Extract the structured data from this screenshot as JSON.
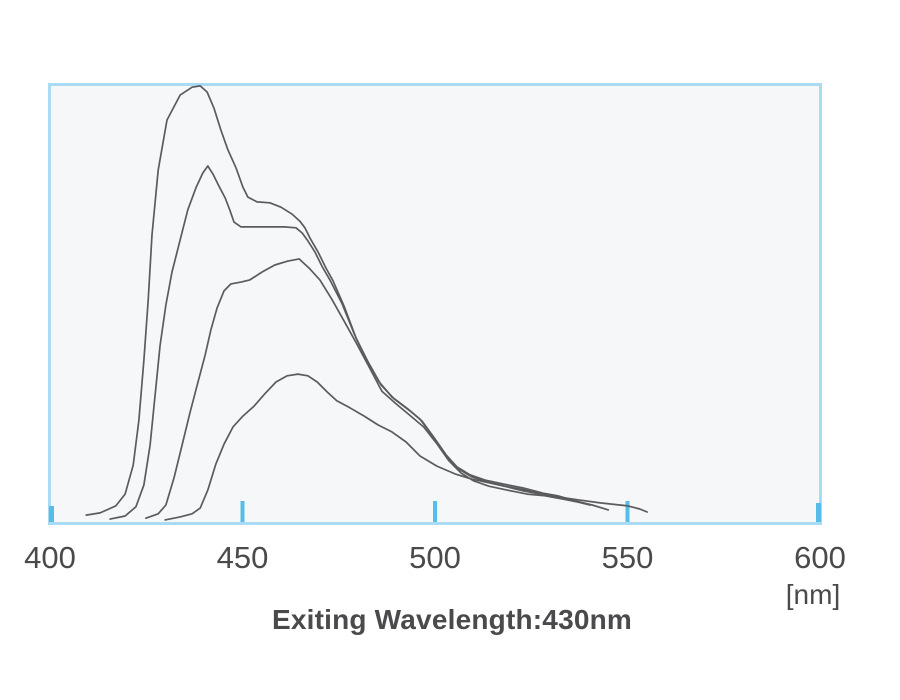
{
  "chart": {
    "caption": "Exiting Wavelength:430nm",
    "unit_label": "[nm]",
    "colors": {
      "plot_background": "#f5f7f9",
      "border": "#a9dcf4",
      "tick": "#55bde9",
      "curve": "#5b5b5e",
      "text": "#4a4a4c"
    }
  },
  "chart_data": {
    "type": "line",
    "title": "",
    "xlabel": "[nm]",
    "ylabel": "",
    "xlim": [
      400,
      600
    ],
    "ylim": [
      0,
      100
    ],
    "x_ticks": [
      400,
      450,
      500,
      550,
      600
    ],
    "y_ticks": [],
    "grid": false,
    "legend": "none",
    "annotation": "Exiting Wavelength:430nm",
    "y_units": "relative intensity (percent of plot height, unlabeled axis)",
    "series": [
      {
        "name": "curve-1-highest",
        "points": [
          [
            409.4,
            1.8
          ],
          [
            413.0,
            2.3
          ],
          [
            417.1,
            3.9
          ],
          [
            419.5,
            6.6
          ],
          [
            421.6,
            13.2
          ],
          [
            423.1,
            23.5
          ],
          [
            424.4,
            37.2
          ],
          [
            425.5,
            50.9
          ],
          [
            426.5,
            65.8
          ],
          [
            428.1,
            80.6
          ],
          [
            430.4,
            92.0
          ],
          [
            433.8,
            97.7
          ],
          [
            436.9,
            99.5
          ],
          [
            439.0,
            99.8
          ],
          [
            440.8,
            98.4
          ],
          [
            442.6,
            94.7
          ],
          [
            444.4,
            89.7
          ],
          [
            446.2,
            85.2
          ],
          [
            448.3,
            81.1
          ],
          [
            450.1,
            76.7
          ],
          [
            451.4,
            74.4
          ],
          [
            453.8,
            73.3
          ],
          [
            457.1,
            73.1
          ],
          [
            460.0,
            72.1
          ],
          [
            462.9,
            70.5
          ],
          [
            464.9,
            68.9
          ],
          [
            466.2,
            67.4
          ],
          [
            467.5,
            65.1
          ],
          [
            469.6,
            61.9
          ],
          [
            471.7,
            58.2
          ],
          [
            473.5,
            55.3
          ],
          [
            476.4,
            49.5
          ],
          [
            479.5,
            42.2
          ],
          [
            482.6,
            36.8
          ],
          [
            486.0,
            31.5
          ],
          [
            489.4,
            28.3
          ],
          [
            493.5,
            25.6
          ],
          [
            496.6,
            23.3
          ],
          [
            499.7,
            19.6
          ],
          [
            503.1,
            15.3
          ],
          [
            506.2,
            12.3
          ],
          [
            509.6,
            10.5
          ],
          [
            513.5,
            9.4
          ],
          [
            518.2,
            8.4
          ],
          [
            523.4,
            7.5
          ],
          [
            528.6,
            6.4
          ],
          [
            532.5,
            5.9
          ],
          [
            537.1,
            5.3
          ],
          [
            542.9,
            4.6
          ],
          [
            550.1,
            3.9
          ],
          [
            553.2,
            3.2
          ],
          [
            555.1,
            2.5
          ]
        ]
      },
      {
        "name": "curve-2",
        "points": [
          [
            415.6,
            0.9
          ],
          [
            419.5,
            1.6
          ],
          [
            422.3,
            3.7
          ],
          [
            424.4,
            8.7
          ],
          [
            426.0,
            17.8
          ],
          [
            427.3,
            29.2
          ],
          [
            428.6,
            40.6
          ],
          [
            430.1,
            49.8
          ],
          [
            431.7,
            57.3
          ],
          [
            433.8,
            64.6
          ],
          [
            435.8,
            71.5
          ],
          [
            437.9,
            76.5
          ],
          [
            439.7,
            79.9
          ],
          [
            441.0,
            81.5
          ],
          [
            442.3,
            79.7
          ],
          [
            443.9,
            76.9
          ],
          [
            445.5,
            74.2
          ],
          [
            446.8,
            71.2
          ],
          [
            447.8,
            68.7
          ],
          [
            449.6,
            67.6
          ],
          [
            453.2,
            67.6
          ],
          [
            457.1,
            67.6
          ],
          [
            460.8,
            67.6
          ],
          [
            463.9,
            67.4
          ],
          [
            465.5,
            66.2
          ],
          [
            467.0,
            64.4
          ],
          [
            468.8,
            61.9
          ],
          [
            470.6,
            58.7
          ],
          [
            472.7,
            55.5
          ],
          [
            475.8,
            50.2
          ],
          [
            479.0,
            43.2
          ],
          [
            482.1,
            37.4
          ],
          [
            485.5,
            32.2
          ],
          [
            488.8,
            28.8
          ],
          [
            493.0,
            26.0
          ],
          [
            496.1,
            23.7
          ],
          [
            499.2,
            20.1
          ],
          [
            502.6,
            15.8
          ],
          [
            505.7,
            12.8
          ],
          [
            509.1,
            11.0
          ],
          [
            513.0,
            9.8
          ],
          [
            517.7,
            8.9
          ],
          [
            522.9,
            8.0
          ],
          [
            528.1,
            6.8
          ],
          [
            531.9,
            6.2
          ],
          [
            536.6,
            5.0
          ],
          [
            540.8,
            4.1
          ],
          [
            545.0,
            3.0
          ]
        ]
      },
      {
        "name": "curve-3",
        "points": [
          [
            424.9,
            1.1
          ],
          [
            428.1,
            2.1
          ],
          [
            430.1,
            4.1
          ],
          [
            432.2,
            10.3
          ],
          [
            434.3,
            17.8
          ],
          [
            436.4,
            25.3
          ],
          [
            438.4,
            32.0
          ],
          [
            440.3,
            38.4
          ],
          [
            441.8,
            44.1
          ],
          [
            443.4,
            49.1
          ],
          [
            445.2,
            53.0
          ],
          [
            447.0,
            54.6
          ],
          [
            449.6,
            55.0
          ],
          [
            451.9,
            55.5
          ],
          [
            455.1,
            57.3
          ],
          [
            458.4,
            58.9
          ],
          [
            461.8,
            59.8
          ],
          [
            464.7,
            60.3
          ],
          [
            467.3,
            58.2
          ],
          [
            470.1,
            55.5
          ],
          [
            473.2,
            51.1
          ],
          [
            476.4,
            46.1
          ],
          [
            479.7,
            40.9
          ],
          [
            482.9,
            35.6
          ],
          [
            486.2,
            30.1
          ],
          [
            489.9,
            27.2
          ],
          [
            494.0,
            24.2
          ],
          [
            497.1,
            21.9
          ],
          [
            500.3,
            18.3
          ],
          [
            503.6,
            14.2
          ],
          [
            506.8,
            11.4
          ],
          [
            510.1,
            9.6
          ],
          [
            514.0,
            8.4
          ],
          [
            518.7,
            7.5
          ],
          [
            523.9,
            6.6
          ],
          [
            528.6,
            6.2
          ],
          [
            533.0,
            5.5
          ],
          [
            537.1,
            4.8
          ],
          [
            540.3,
            4.1
          ]
        ]
      },
      {
        "name": "curve-4-lowest",
        "points": [
          [
            429.9,
            0.7
          ],
          [
            433.8,
            1.4
          ],
          [
            436.9,
            2.1
          ],
          [
            439.0,
            3.4
          ],
          [
            441.0,
            7.5
          ],
          [
            443.1,
            13.5
          ],
          [
            445.2,
            18.0
          ],
          [
            447.5,
            21.9
          ],
          [
            450.1,
            24.4
          ],
          [
            453.0,
            26.7
          ],
          [
            455.8,
            29.5
          ],
          [
            458.7,
            32.2
          ],
          [
            461.6,
            33.6
          ],
          [
            464.4,
            34.0
          ],
          [
            467.0,
            33.6
          ],
          [
            469.4,
            32.2
          ],
          [
            472.0,
            29.9
          ],
          [
            474.5,
            27.9
          ],
          [
            477.9,
            26.3
          ],
          [
            481.6,
            24.4
          ],
          [
            485.2,
            22.4
          ],
          [
            488.8,
            20.8
          ],
          [
            492.5,
            18.5
          ],
          [
            496.1,
            15.3
          ],
          [
            500.5,
            13.0
          ],
          [
            505.2,
            11.2
          ],
          [
            509.6,
            10.0
          ],
          [
            514.3,
            9.1
          ],
          [
            519.0,
            8.2
          ],
          [
            523.1,
            7.3
          ],
          [
            527.3,
            6.6
          ],
          [
            530.6,
            5.9
          ],
          [
            533.8,
            5.5
          ]
        ]
      }
    ]
  }
}
